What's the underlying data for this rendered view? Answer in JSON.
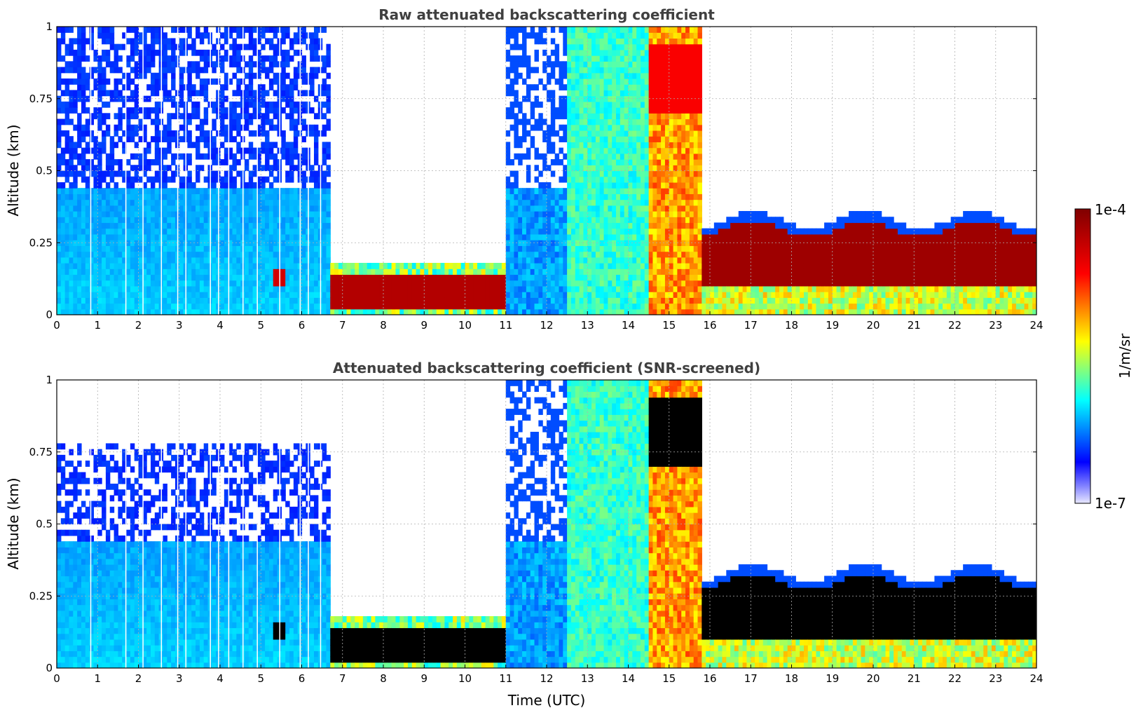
{
  "colors": {
    "jet_low": "#00007f",
    "jet_blue": "#0000ff",
    "jet_cyan": "#00ffff",
    "jet_yellow": "#ffff00",
    "jet_red": "#ff0000",
    "jet_high": "#7f0000",
    "grid": "#b0b0b0",
    "masked": "#000000"
  },
  "chart_data": [
    {
      "type": "heatmap",
      "title": "Raw attenuated backscattering coefficient",
      "xlabel": "",
      "ylabel": "Altitude (km)",
      "xlim": [
        0,
        24
      ],
      "ylim": [
        0,
        1
      ],
      "x_ticks": [
        "0",
        "1",
        "2",
        "3",
        "4",
        "5",
        "6",
        "7",
        "8",
        "9",
        "10",
        "11",
        "12",
        "13",
        "14",
        "15",
        "16",
        "17",
        "18",
        "19",
        "20",
        "21",
        "22",
        "23",
        "24"
      ],
      "y_ticks": [
        "0",
        "0.25",
        "0.5",
        "0.75",
        "1"
      ],
      "grid": true,
      "colorbar": {
        "min_label": "1e-7",
        "max_label": "1e-4",
        "label": "1/m/sr",
        "scale": "log"
      },
      "features": [
        {
          "name": "noisy clear air",
          "time_range_utc": [
            0,
            6.7
          ],
          "altitude_km": [
            0,
            1.0
          ],
          "level": "~1e-7 to 1e-6"
        },
        {
          "name": "aerosol layer",
          "time_range_utc": [
            5.35,
            5.6
          ],
          "altitude_km": [
            0.1,
            0.16
          ],
          "level": "~1e-4"
        },
        {
          "name": "low cloud / fog",
          "time_range_utc": [
            6.7,
            11.0
          ],
          "altitude_km": [
            0.02,
            0.14
          ],
          "level": "~1e-4"
        },
        {
          "name": "rain / high signal",
          "time_range_utc": [
            12.5,
            15.8
          ],
          "altitude_km": [
            0,
            1.0
          ],
          "level": "~1e-6 to 1e-5"
        },
        {
          "name": "stratocumulus layer",
          "time_range_utc": [
            15.8,
            23.8
          ],
          "altitude_km": [
            0.1,
            0.3
          ],
          "level": "~1e-4"
        }
      ]
    },
    {
      "type": "heatmap",
      "title": "Attenuated backscattering coefficient (SNR-screened)",
      "xlabel": "Time (UTC)",
      "ylabel": "Altitude (km)",
      "xlim": [
        0,
        24
      ],
      "ylim": [
        0,
        1
      ],
      "x_ticks": [
        "0",
        "1",
        "2",
        "3",
        "4",
        "5",
        "6",
        "7",
        "8",
        "9",
        "10",
        "11",
        "12",
        "13",
        "14",
        "15",
        "16",
        "17",
        "18",
        "19",
        "20",
        "21",
        "22",
        "23",
        "24"
      ],
      "y_ticks": [
        "0",
        "0.25",
        "0.5",
        "0.75",
        "1"
      ],
      "grid": true,
      "colorbar": {
        "min_label": "1e-7",
        "max_label": "1e-4",
        "label": "1/m/sr",
        "scale": "log"
      },
      "features": [
        {
          "name": "screened clear air",
          "time_range_utc": [
            0,
            6.7
          ],
          "altitude_km": [
            0,
            0.8
          ],
          "level": "~1e-7 to 1e-6"
        },
        {
          "name": "low cloud (saturated/masked)",
          "time_range_utc": [
            6.7,
            11.0
          ],
          "altitude_km": [
            0.0,
            0.12
          ],
          "level": "masked"
        },
        {
          "name": "stratocumulus layer (saturated/masked)",
          "time_range_utc": [
            15.8,
            23.8
          ],
          "altitude_km": [
            0.08,
            0.3
          ],
          "level": "masked"
        }
      ]
    }
  ],
  "colorbar": {
    "max_label": "1e-4",
    "min_label": "1e-7",
    "unit_label": "1/m/sr"
  }
}
